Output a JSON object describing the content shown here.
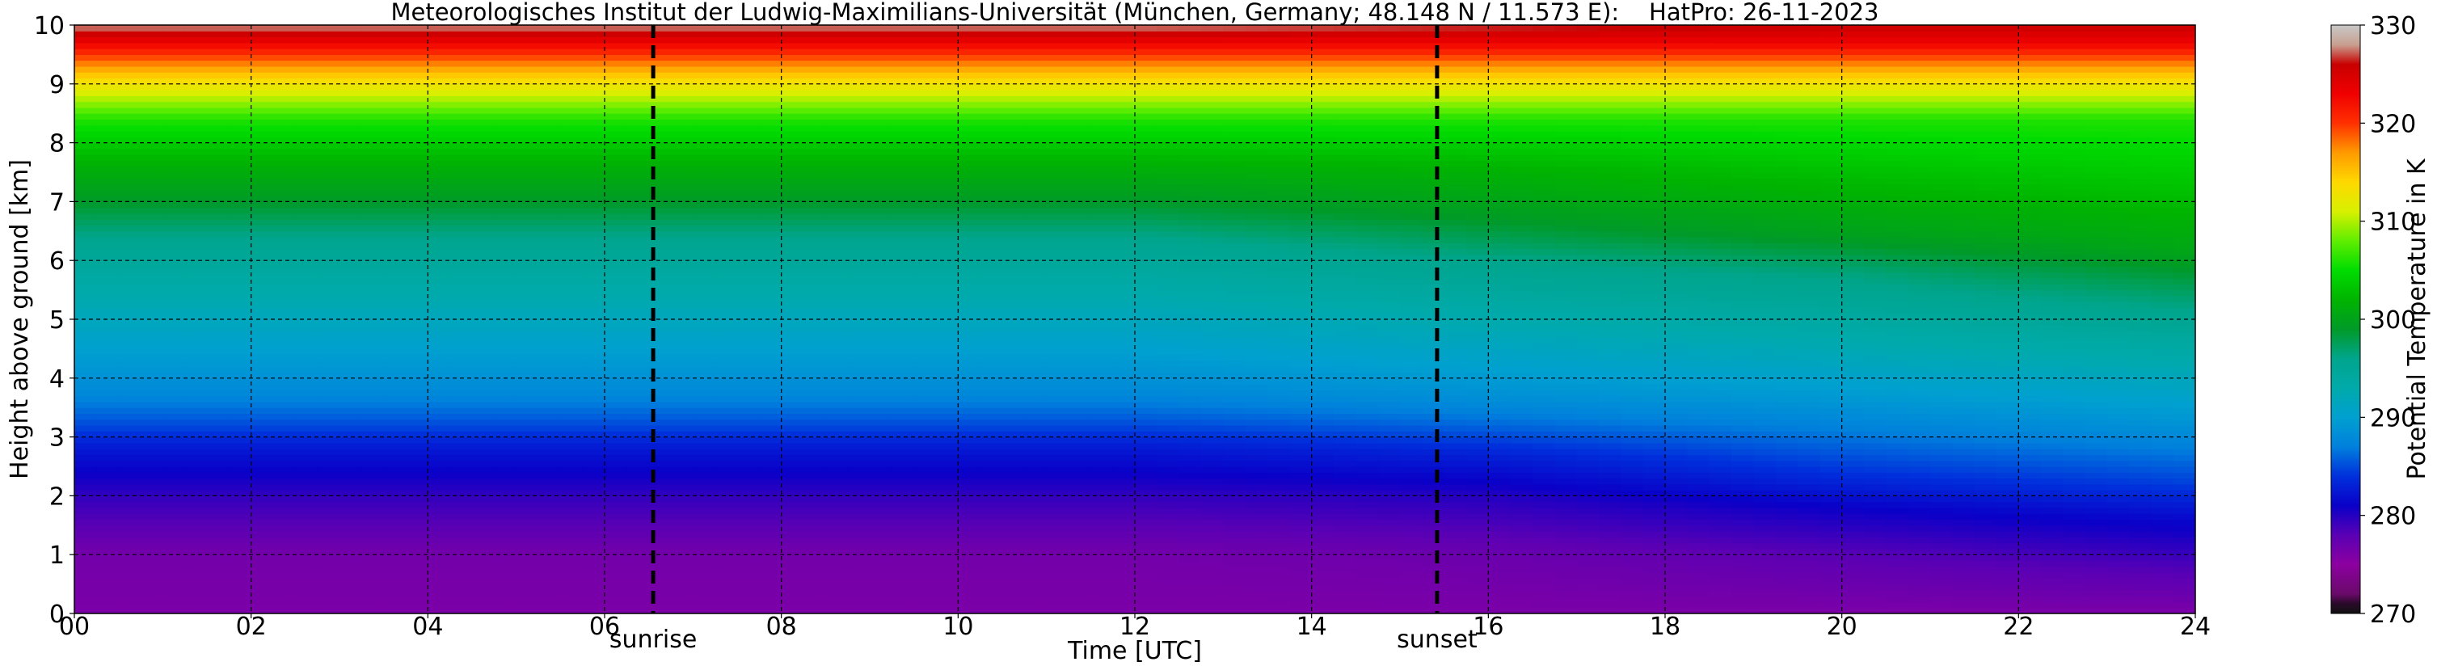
{
  "chart_data": {
    "type": "heatmap",
    "title": "Meteorologisches Institut der Ludwig-Maximilians-Universität (München, Germany; 48.148 N / 11.573 E):    HatPro: 26-11-2023",
    "xlabel": "Time [UTC]",
    "ylabel": "Height above ground [km]",
    "colorbar_label": "Potential Temperature in K",
    "xlim": [
      0,
      24
    ],
    "ylim": [
      0,
      10
    ],
    "x_ticks": [
      0,
      2,
      4,
      6,
      8,
      10,
      12,
      14,
      16,
      18,
      20,
      22,
      24
    ],
    "x_tick_labels": [
      "00",
      "02",
      "04",
      "06",
      "08",
      "10",
      "12",
      "14",
      "16",
      "18",
      "20",
      "22",
      "24"
    ],
    "y_ticks": [
      0,
      1,
      2,
      3,
      4,
      5,
      6,
      7,
      8,
      9,
      10
    ],
    "y_tick_labels": [
      "0",
      "1",
      "2",
      "3",
      "4",
      "5",
      "6",
      "7",
      "8",
      "9",
      "10"
    ],
    "colorbar_range": [
      270,
      330
    ],
    "colorbar_ticks": [
      270,
      280,
      290,
      300,
      310,
      320,
      330
    ],
    "grid": true,
    "events": [
      {
        "label": "sunrise",
        "time": 6.55
      },
      {
        "label": "sunset",
        "time": 15.42
      }
    ],
    "colormap": [
      {
        "k": 270,
        "color": "#111111"
      },
      {
        "k": 271,
        "color": "#2a0a2a"
      },
      {
        "k": 272,
        "color": "#6a0a6a"
      },
      {
        "k": 275,
        "color": "#8c00a0"
      },
      {
        "k": 278,
        "color": "#5a00b4"
      },
      {
        "k": 281,
        "color": "#0a00c8"
      },
      {
        "k": 284,
        "color": "#0030dc"
      },
      {
        "k": 287,
        "color": "#0080dc"
      },
      {
        "k": 290,
        "color": "#00a0d0"
      },
      {
        "k": 293,
        "color": "#00aaaa"
      },
      {
        "k": 296,
        "color": "#00a58c"
      },
      {
        "k": 299,
        "color": "#009a28"
      },
      {
        "k": 302,
        "color": "#00b400"
      },
      {
        "k": 305,
        "color": "#00dc00"
      },
      {
        "k": 308,
        "color": "#60ee00"
      },
      {
        "k": 311,
        "color": "#d8f000"
      },
      {
        "k": 314,
        "color": "#ffd800"
      },
      {
        "k": 317,
        "color": "#ff9a00"
      },
      {
        "k": 320,
        "color": "#ff3000"
      },
      {
        "k": 323,
        "color": "#f00000"
      },
      {
        "k": 326,
        "color": "#c80000"
      },
      {
        "k": 328,
        "color": "#c8a090"
      },
      {
        "k": 330,
        "color": "#c8c8c8"
      }
    ],
    "profiles": [
      {
        "time": 0,
        "heights_km": [
          0,
          1,
          2,
          2.8,
          3.3,
          3.8,
          4.8,
          6.3,
          7,
          7.7,
          8.4,
          9.1,
          9.4,
          9.7,
          10
        ],
        "theta_k": [
          276,
          276.5,
          279.5,
          282.5,
          285.5,
          288,
          291,
          295.5,
          299,
          302,
          306,
          314,
          318.5,
          323,
          328
        ]
      },
      {
        "time": 6,
        "heights_km": [
          0,
          1,
          2,
          2.8,
          3.3,
          3.8,
          4.8,
          6.3,
          7,
          7.7,
          8.4,
          9.1,
          9.4,
          9.7,
          10
        ],
        "theta_k": [
          276,
          276.5,
          279.5,
          282.5,
          285.5,
          288,
          291,
          295.5,
          299,
          302,
          306,
          314,
          318.5,
          323,
          328
        ]
      },
      {
        "time": 12,
        "heights_km": [
          0,
          1,
          2,
          2.8,
          3.3,
          3.8,
          4.8,
          6.3,
          7,
          7.7,
          8.4,
          9.1,
          9.4,
          9.7,
          10
        ],
        "theta_k": [
          276,
          276.5,
          279.5,
          282.5,
          285.5,
          288,
          291,
          295.5,
          299,
          302,
          306,
          314,
          318.5,
          323,
          328
        ]
      },
      {
        "time": 16,
        "heights_km": [
          0,
          1,
          2,
          2.7,
          3.2,
          3.7,
          4.6,
          6.0,
          6.8,
          7.6,
          8.4,
          9.1,
          9.4,
          9.7,
          10
        ],
        "theta_k": [
          276,
          277,
          280,
          283,
          286,
          288.5,
          291.5,
          296,
          299.5,
          302,
          306,
          314,
          318.5,
          323,
          327
        ]
      },
      {
        "time": 20,
        "heights_km": [
          0,
          1,
          1.8,
          2.4,
          3.0,
          3.6,
          4.4,
          5.8,
          6.5,
          7.4,
          8.4,
          9.1,
          9.4,
          9.7,
          10
        ],
        "theta_k": [
          276,
          278,
          281,
          284,
          286.5,
          289,
          292,
          296.5,
          300,
          302.5,
          306,
          314,
          318.5,
          323,
          326
        ]
      },
      {
        "time": 24,
        "heights_km": [
          0,
          0.8,
          1.6,
          2.2,
          2.8,
          3.4,
          4.2,
          5.4,
          6.2,
          7.2,
          8.4,
          9.1,
          9.4,
          9.7,
          10
        ],
        "theta_k": [
          276,
          278.5,
          281.5,
          284.5,
          287,
          289.5,
          292.5,
          297,
          300.5,
          303,
          306,
          314,
          318.5,
          323,
          326
        ]
      }
    ]
  }
}
